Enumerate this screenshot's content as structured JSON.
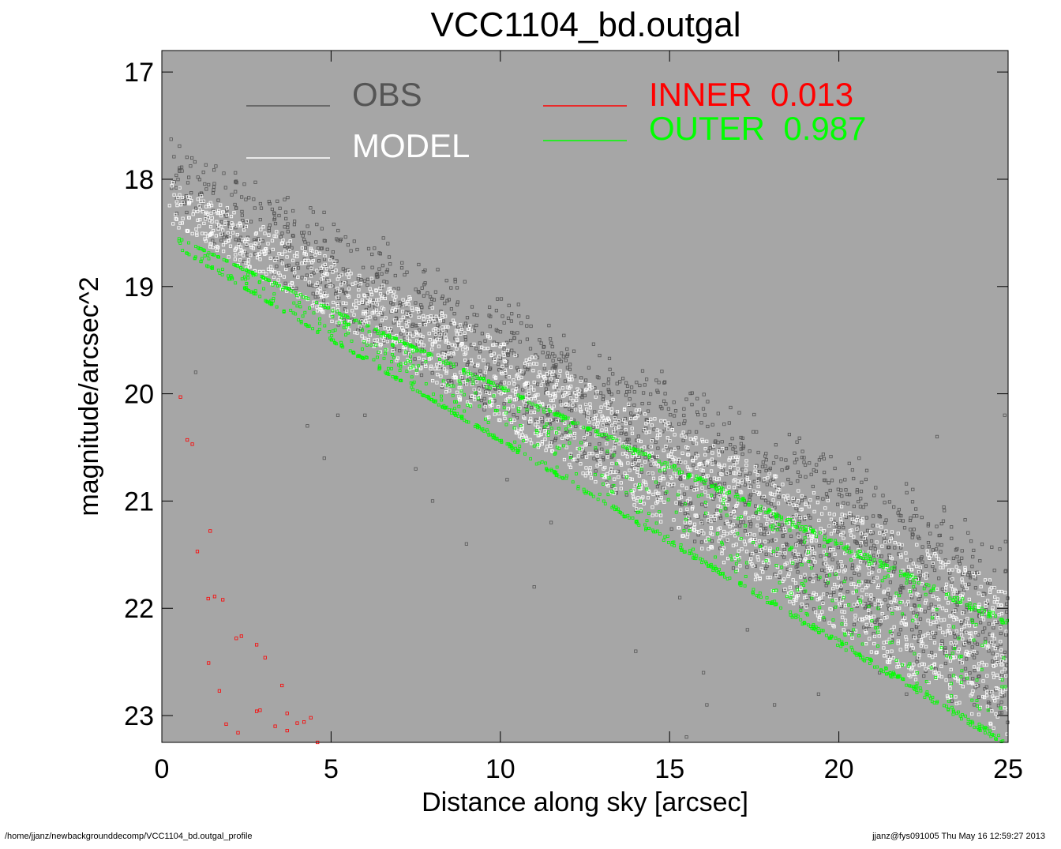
{
  "chart_data": {
    "type": "scatter",
    "title": "VCC1104_bd.outgal",
    "xlabel": "Distance along sky [arcsec]",
    "ylabel": "magnitude/arcsec^2",
    "xlim": [
      0,
      25
    ],
    "ylim": [
      23.25,
      16.8
    ],
    "y_inverted": true,
    "grid": false,
    "background_color": "#a6a6a6",
    "xticks": [
      0,
      5,
      10,
      15,
      20,
      25
    ],
    "xtick_labels": [
      "0",
      "5",
      "10",
      "15",
      "20",
      "25"
    ],
    "yticks": [
      17,
      18,
      19,
      20,
      21,
      22,
      23
    ],
    "ytick_labels": [
      "17",
      "18",
      "19",
      "20",
      "21",
      "22",
      "23"
    ],
    "legend": {
      "placement": "top",
      "entries": [
        {
          "label": "OBS",
          "color": "#555555"
        },
        {
          "label": "MODEL",
          "color": "#ffffff"
        },
        {
          "label": "INNER  0.013",
          "color": "#ff0000"
        },
        {
          "label": "OUTER  0.987",
          "color": "#00ff00"
        }
      ]
    },
    "series": [
      {
        "name": "OBS",
        "color": "#555555",
        "marker": "square-open",
        "band": {
          "x_start": 0.2,
          "x_end": 25,
          "y_upper_start": 17.7,
          "y_upper_end": 21.5,
          "y_lower_start": 18.3,
          "y_lower_end": 23.0
        },
        "scattered_points": [
          [
            1.0,
            19.8
          ],
          [
            4.3,
            20.3
          ],
          [
            4.8,
            20.6
          ],
          [
            5.2,
            20.2
          ],
          [
            6.0,
            20.2
          ],
          [
            7.5,
            20.7
          ],
          [
            8.0,
            21.0
          ],
          [
            9.0,
            21.4
          ],
          [
            10.2,
            20.8
          ],
          [
            11.0,
            21.8
          ],
          [
            11.5,
            21.2
          ],
          [
            14.0,
            22.4
          ],
          [
            15.3,
            21.9
          ],
          [
            16.0,
            22.6
          ],
          [
            17.3,
            22.2
          ],
          [
            18.1,
            22.9
          ],
          [
            19.4,
            22.8
          ],
          [
            21.2,
            22.6
          ],
          [
            22.0,
            22.8
          ],
          [
            20.6,
            20.6
          ],
          [
            22.9,
            20.4
          ],
          [
            24.9,
            20.2
          ],
          [
            15.5,
            23.2
          ],
          [
            16.1,
            22.9
          ]
        ]
      },
      {
        "name": "MODEL",
        "color": "#ffffff",
        "marker": "square-open",
        "band": {
          "x_start": 0.2,
          "x_end": 25,
          "y_upper_start": 18.0,
          "y_upper_end": 21.8,
          "y_lower_start": 18.4,
          "y_lower_end": 23.2
        }
      },
      {
        "name": "INNER  0.013",
        "color": "#ff0000",
        "marker": "square-open",
        "points": [
          [
            0.55,
            20.03
          ],
          [
            0.75,
            20.43
          ],
          [
            0.9,
            20.47
          ],
          [
            1.05,
            21.47
          ],
          [
            1.43,
            21.28
          ],
          [
            1.37,
            21.91
          ],
          [
            1.56,
            21.89
          ],
          [
            1.8,
            21.92
          ],
          [
            2.2,
            22.28
          ],
          [
            2.35,
            22.26
          ],
          [
            1.38,
            22.51
          ],
          [
            1.7,
            22.77
          ],
          [
            2.8,
            22.34
          ],
          [
            3.05,
            22.46
          ],
          [
            2.9,
            22.95
          ],
          [
            2.8,
            22.96
          ],
          [
            3.7,
            22.98
          ],
          [
            3.55,
            22.72
          ],
          [
            1.9,
            23.08
          ],
          [
            2.25,
            23.16
          ],
          [
            3.35,
            23.1
          ],
          [
            3.7,
            23.14
          ],
          [
            4.0,
            23.07
          ],
          [
            4.2,
            23.06
          ],
          [
            4.4,
            23.02
          ],
          [
            4.6,
            23.25
          ]
        ]
      },
      {
        "name": "OUTER  0.987",
        "color": "#00ff00",
        "marker": "square-open",
        "band": {
          "x_start": 0.5,
          "x_end": 25,
          "y_upper_start": 18.55,
          "y_upper_end": 22.1,
          "y_lower_start": 18.65,
          "y_lower_end": 23.3
        }
      }
    ]
  },
  "footer": {
    "left": "/home/jjanz/newbackgrounddecomp/VCC1104_bd.outgal_profile",
    "right": "jjanz@fys091005  Thu May 16 12:59:27 2013"
  }
}
